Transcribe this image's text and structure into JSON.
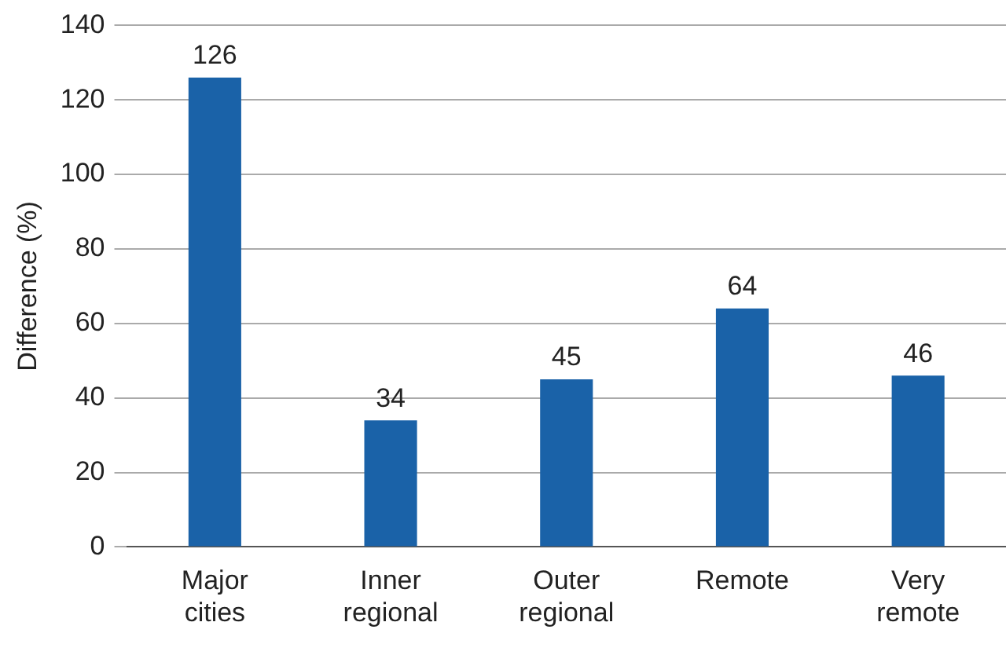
{
  "chart_data": {
    "type": "bar",
    "ylabel": "Difference (%)",
    "categories": [
      "Major cities",
      "Inner regional",
      "Outer regional",
      "Remote",
      "Very remote"
    ],
    "values": [
      126,
      34,
      45,
      64,
      46
    ],
    "color": "#1a62a8",
    "ylim": [
      0,
      140
    ],
    "yticks": [
      0,
      20,
      40,
      60,
      80,
      100,
      120,
      140
    ],
    "grid": "y",
    "data_labels": true
  }
}
